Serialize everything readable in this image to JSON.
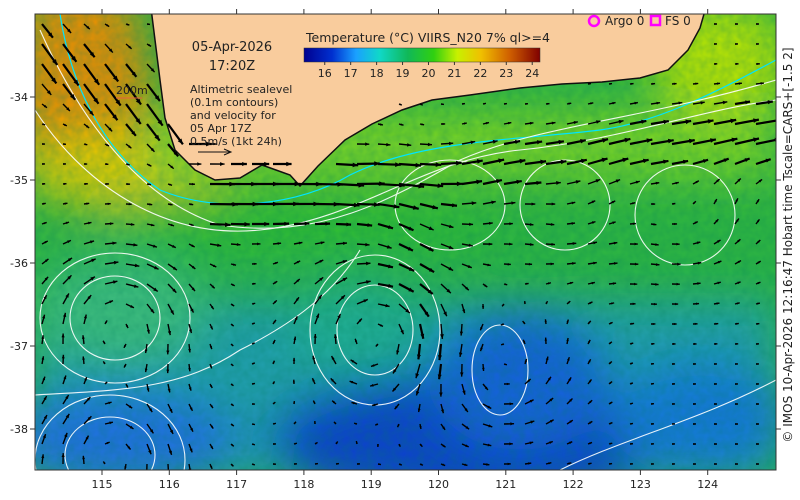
{
  "header": {
    "date": "05-Apr-2026",
    "time": "17:20Z"
  },
  "legend": {
    "colorbar_title": "Temperature (°C) VIIRS_N20 7% ql>=4",
    "colorbar_ticks": [
      "16",
      "17",
      "18",
      "19",
      "20",
      "21",
      "22",
      "23",
      "24"
    ],
    "colorbar_range": [
      15.2,
      24.3
    ],
    "argo_label": "Argo 0",
    "fs_label": "FS 0",
    "argo_color": "#ff00ff",
    "fs_color": "#ff00ff"
  },
  "annotation": {
    "isobath_label": "200m",
    "description_lines": [
      "Altimetric sealevel",
      "(0.1m contours)",
      "and velocity for",
      "05 Apr 17Z",
      "0.5m/s (1kt 24h)"
    ]
  },
  "axes": {
    "lon_ticks": [
      "115",
      "116",
      "117",
      "118",
      "119",
      "120",
      "121",
      "122",
      "123",
      "124"
    ],
    "lat_ticks": [
      "-34",
      "-35",
      "-36",
      "-37",
      "-38"
    ]
  },
  "credit": "© IMOS 10-Apr-2026 12:16:47 Hobart time Tscale=CARS+[-1.5 2]",
  "colors": {
    "land": "#f9cc9d",
    "coast": "#111111",
    "contour": "#ffffff",
    "isobath": "#00e5ff"
  }
}
